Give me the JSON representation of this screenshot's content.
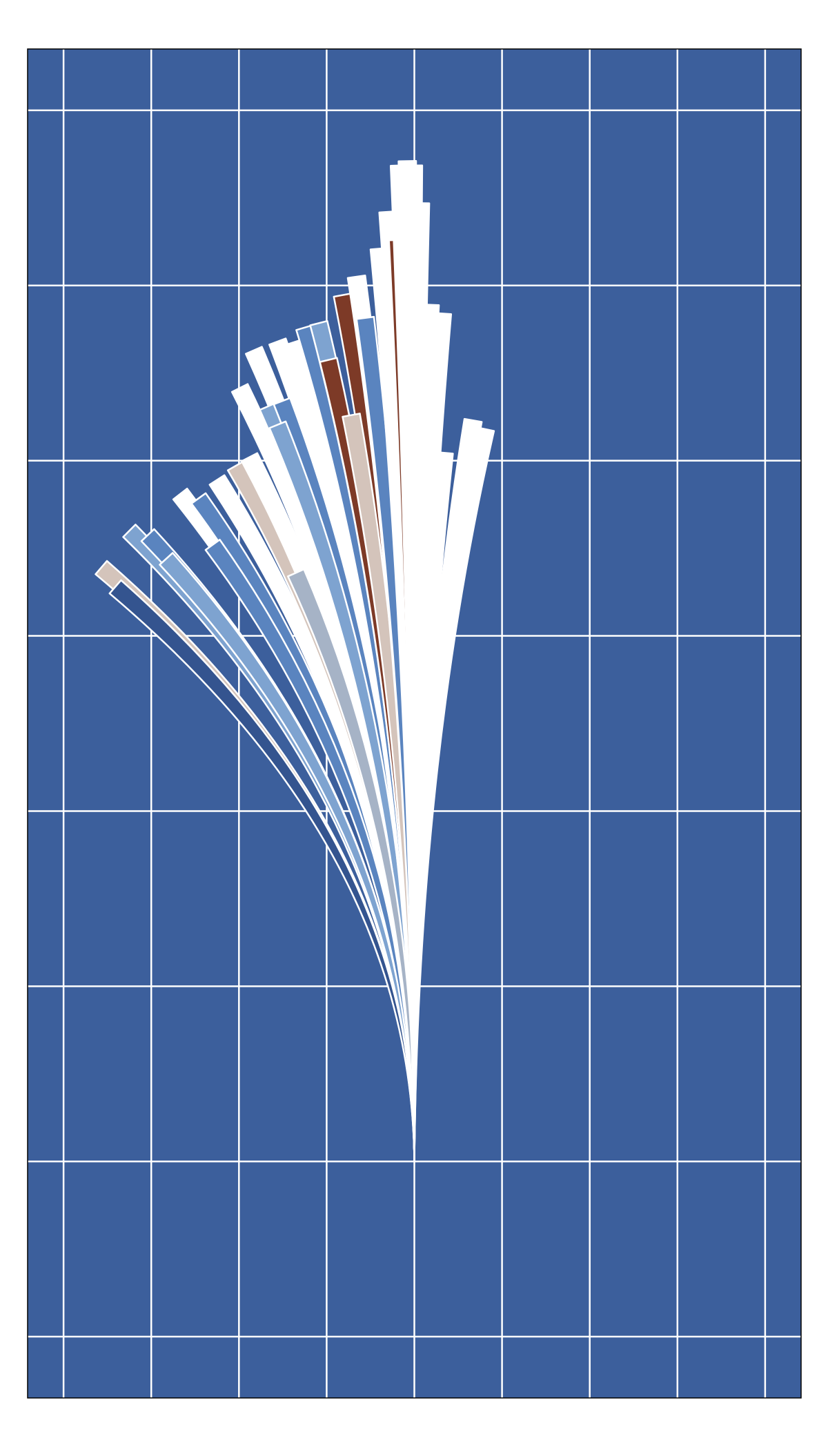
{
  "chart_data": {
    "type": "fan",
    "x": [
      -3.57,
      -3.41,
      -3.25,
      -3.04,
      -2.83,
      -2.67,
      -2.46,
      -2.3,
      -2.25,
      -2.04,
      -1.88,
      -1.99,
      -1.83,
      -1.67,
      -1.56,
      -1.51,
      -1.56,
      -1.35,
      -1.35,
      -1.25,
      -1.09,
      -0.98,
      -0.82,
      -0.72,
      -0.66,
      -0.56,
      -0.4,
      -0.3,
      -0.19,
      -0.17,
      -0.08,
      -0.01,
      0.07,
      0.18,
      0.32,
      0.34,
      0.67,
      0.81
    ],
    "values": [
      6.78,
      6.56,
      7.2,
      7.15,
      6.88,
      7.62,
      7.57,
      7.04,
      7.78,
      7.94,
      8.04,
      8.83,
      9.26,
      8.62,
      9.36,
      8.68,
      8.41,
      9.36,
      6.72,
      9.52,
      9.57,
      9.15,
      9.89,
      8.52,
      10.1,
      9.63,
      10.42,
      10.84,
      10.52,
      11.37,
      11.42,
      11.37,
      10.94,
      9.78,
      9.68,
      8.09,
      8.46,
      8.36
    ],
    "colors": [
      "#d4c4bb",
      "#34548f",
      "#7ea3d0",
      "#5a84bf",
      "#7ea3d0",
      "#ffffff",
      "#5a84bf",
      "#5a84bf",
      "#ffffff",
      "#d4c4bb",
      "#ffffff",
      "#ffffff",
      "#ffffff",
      "#7ea3d0",
      "#ffffff",
      "#5a84bf",
      "#7ea3d0",
      "#ffffff",
      "#a6b3c6",
      "#5a84bf",
      "#7ea3d0",
      "#7d3a27",
      "#7d3a27",
      "#d4c4bb",
      "#ffffff",
      "#5a84bf",
      "#ffffff",
      "#ffffff",
      "#7d3a27",
      "#ffffff",
      "#ffffff",
      "#ffffff",
      "#ffffff",
      "#ffffff",
      "#ffffff",
      "#ffffff",
      "#ffffff",
      "#ffffff"
    ],
    "background": "#3c5f9c",
    "xlim": [
      -4.41,
      4.41
    ],
    "ylim": [
      -2.7,
      12.7
    ],
    "xticks": [
      -4,
      -3,
      -2,
      -1,
      0,
      1,
      2,
      3,
      4
    ],
    "yticks": [
      -2,
      0,
      2,
      4,
      6,
      8,
      10,
      12
    ],
    "grid": true
  }
}
